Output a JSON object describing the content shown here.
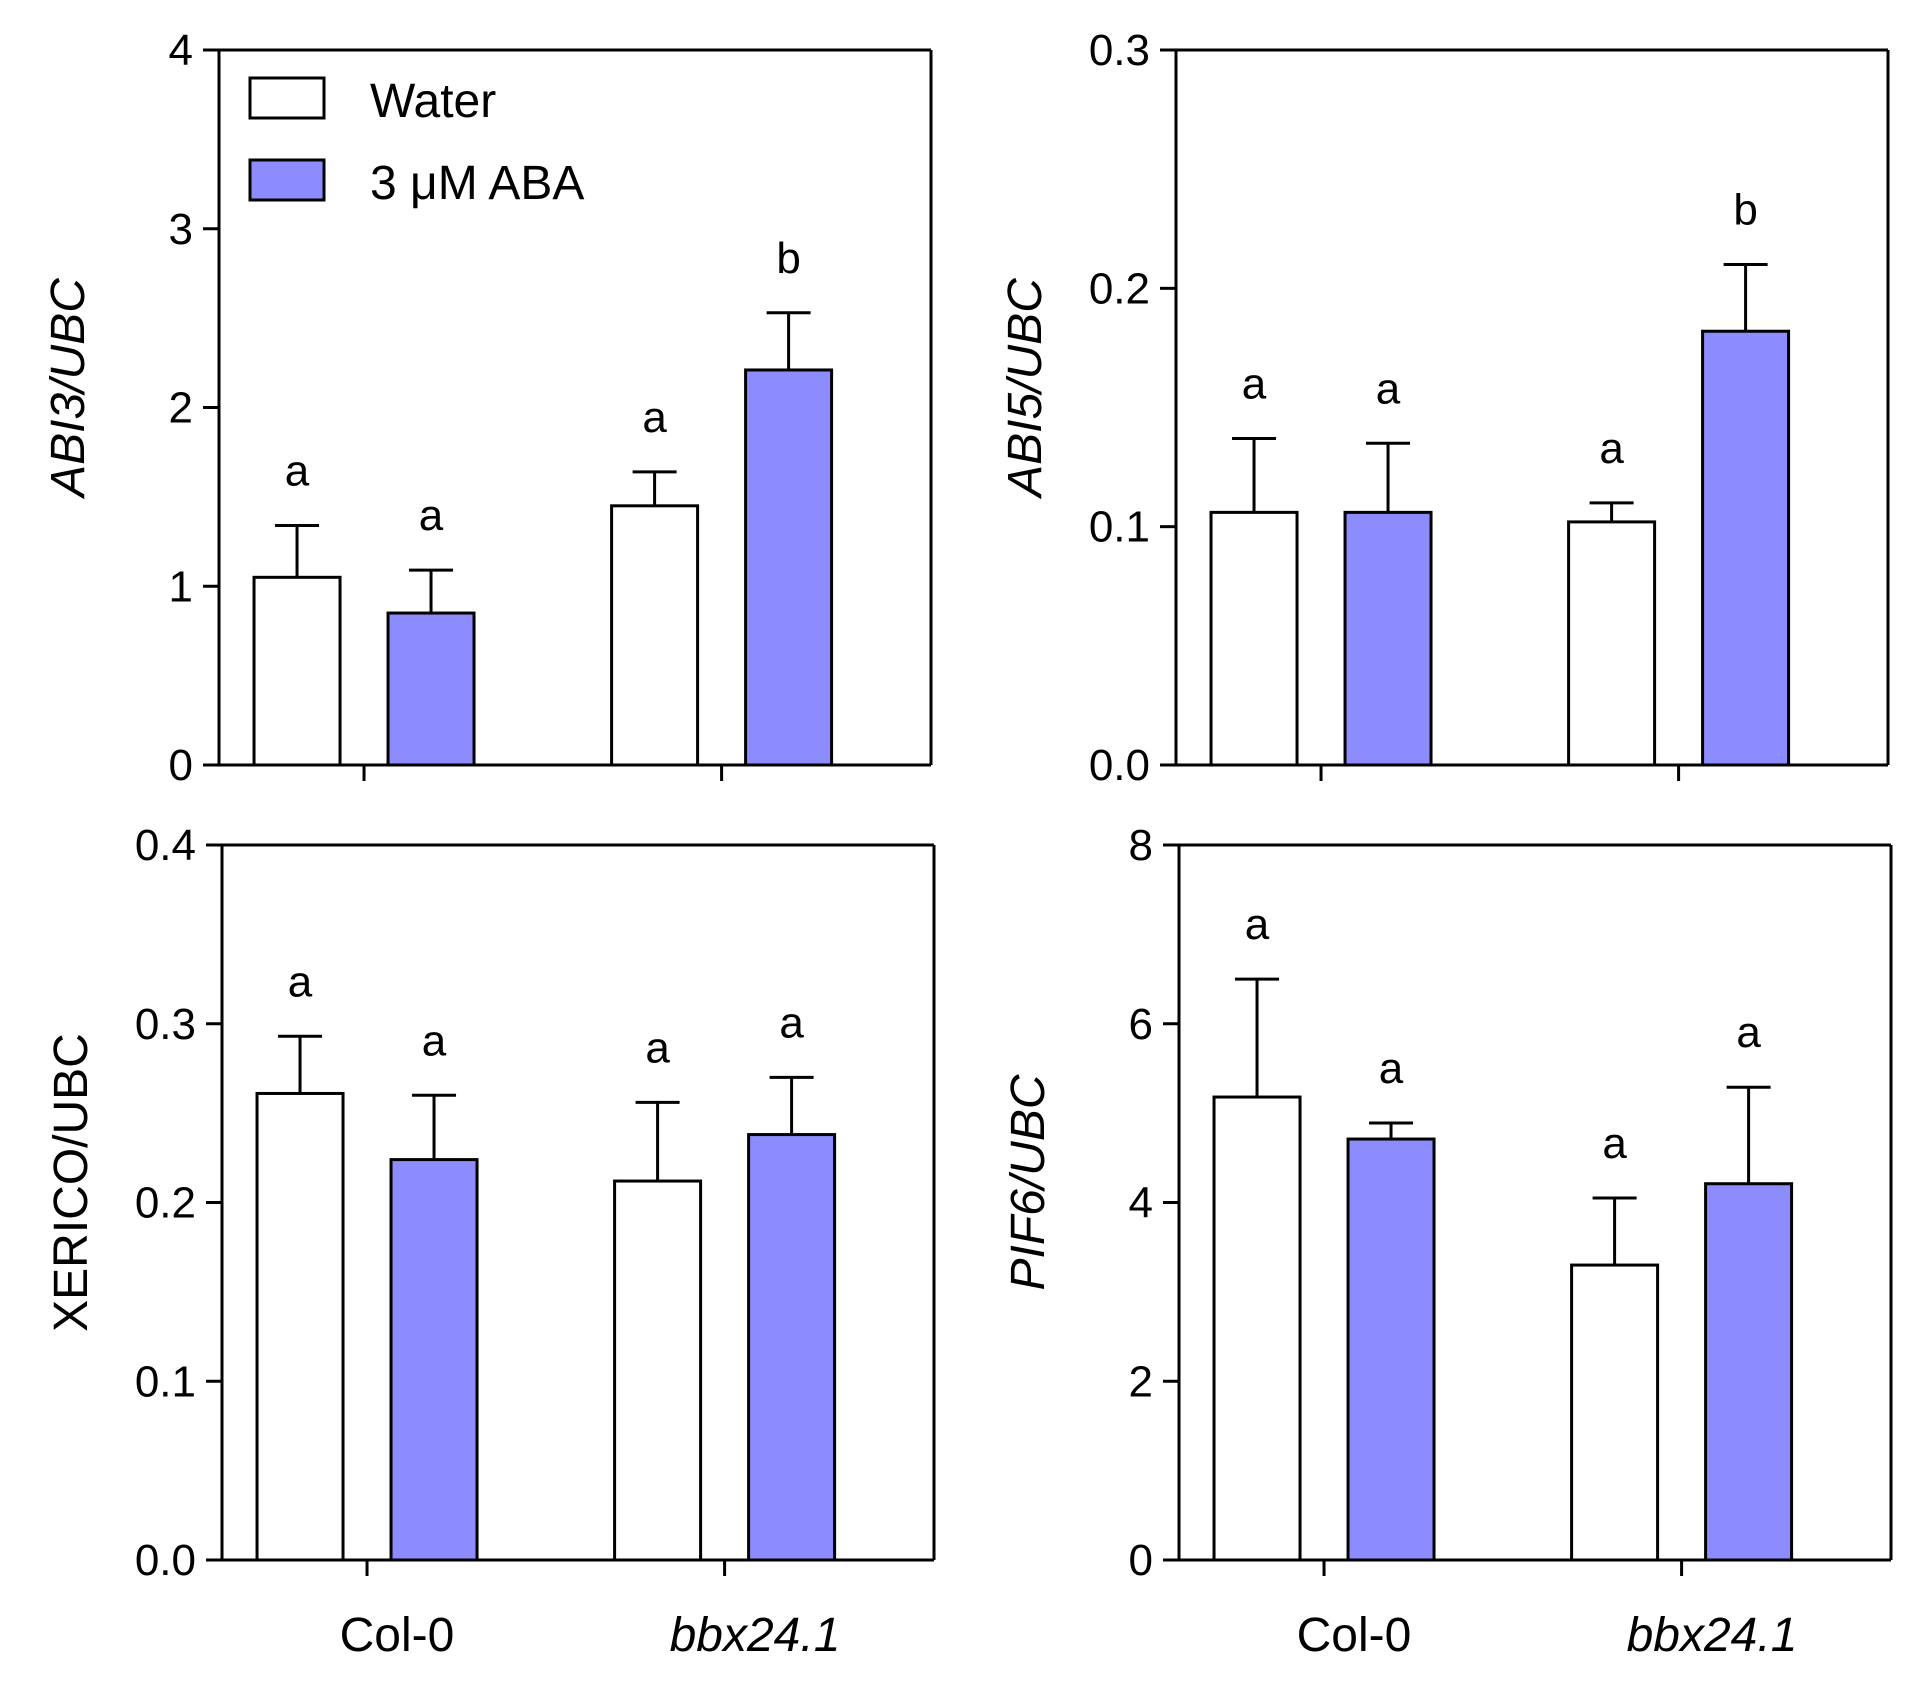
{
  "legend": {
    "water": "Water",
    "aba": "3 μM ABA"
  },
  "colors": {
    "water": "#ffffff",
    "aba": "#8c8cff",
    "stroke": "#000000"
  },
  "categories": [
    "Col-0",
    "bbx24.1"
  ],
  "chart_data": [
    {
      "type": "bar",
      "title": "",
      "ylabel": "ABI3/UBC",
      "ylabel_italic": true,
      "ylim": [
        0,
        4
      ],
      "yticks": [
        0,
        1,
        2,
        3,
        4
      ],
      "ytick_labels": [
        "0",
        "1",
        "2",
        "3",
        "4"
      ],
      "categories": [
        "Col-0",
        "bbx24.1"
      ],
      "series": [
        {
          "name": "Water",
          "values": [
            1.05,
            1.45
          ],
          "errors": [
            0.29,
            0.19
          ],
          "letters": [
            "a",
            "a"
          ]
        },
        {
          "name": "3 μM ABA",
          "values": [
            0.85,
            2.21
          ],
          "errors": [
            0.24,
            0.32
          ],
          "letters": [
            "a",
            "b"
          ]
        }
      ]
    },
    {
      "type": "bar",
      "title": "",
      "ylabel": "ABI5/UBC",
      "ylabel_italic": true,
      "ylim": [
        0,
        0.3
      ],
      "yticks": [
        0,
        0.1,
        0.2,
        0.3
      ],
      "ytick_labels": [
        "0.0",
        "0.1",
        "0.2",
        "0.3"
      ],
      "categories": [
        "Col-0",
        "bbx24.1"
      ],
      "series": [
        {
          "name": "Water",
          "values": [
            0.106,
            0.102
          ],
          "errors": [
            0.031,
            0.008
          ],
          "letters": [
            "a",
            "a"
          ]
        },
        {
          "name": "3 μM ABA",
          "values": [
            0.106,
            0.182
          ],
          "errors": [
            0.029,
            0.028
          ],
          "letters": [
            "a",
            "b"
          ]
        }
      ]
    },
    {
      "type": "bar",
      "title": "",
      "ylabel": "XERICO/UBC",
      "ylabel_italic": false,
      "ylim": [
        0,
        0.4
      ],
      "yticks": [
        0,
        0.1,
        0.2,
        0.3,
        0.4
      ],
      "ytick_labels": [
        "0.0",
        "0.1",
        "0.2",
        "0.3",
        "0.4"
      ],
      "categories": [
        "Col-0",
        "bbx24.1"
      ],
      "series": [
        {
          "name": "Water",
          "values": [
            0.261,
            0.212
          ],
          "errors": [
            0.032,
            0.044
          ],
          "letters": [
            "a",
            "a"
          ]
        },
        {
          "name": "3 μM ABA",
          "values": [
            0.224,
            0.238
          ],
          "errors": [
            0.036,
            0.032
          ],
          "letters": [
            "a",
            "a"
          ]
        }
      ]
    },
    {
      "type": "bar",
      "title": "",
      "ylabel": "PIF6/UBC",
      "ylabel_italic": true,
      "ylim": [
        0,
        8
      ],
      "yticks": [
        0,
        2,
        4,
        6,
        8
      ],
      "ytick_labels": [
        "0",
        "2",
        "4",
        "6",
        "8"
      ],
      "categories": [
        "Col-0",
        "bbx24.1"
      ],
      "series": [
        {
          "name": "Water",
          "values": [
            5.18,
            3.3
          ],
          "errors": [
            1.32,
            0.75
          ],
          "letters": [
            "a",
            "a"
          ]
        },
        {
          "name": "3 μM ABA",
          "values": [
            4.71,
            4.21
          ],
          "errors": [
            0.18,
            1.08
          ],
          "letters": [
            "a",
            "a"
          ]
        }
      ]
    }
  ]
}
